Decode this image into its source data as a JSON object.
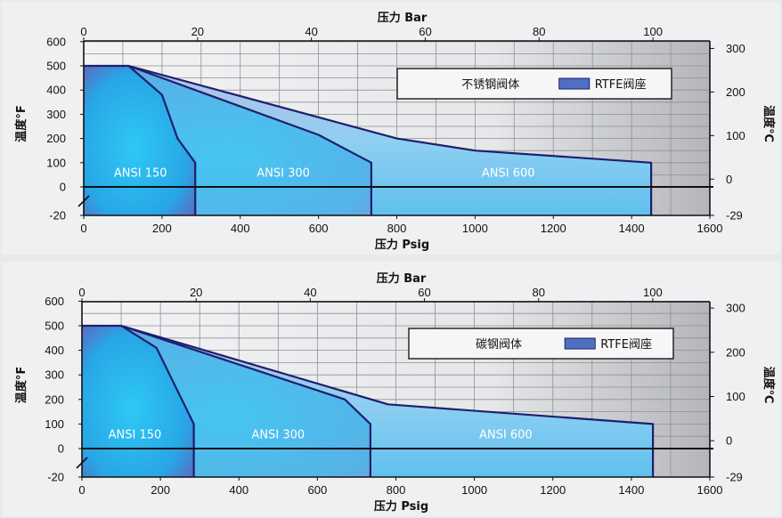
{
  "chart_data": [
    {
      "type": "area",
      "xlabel": "压力 Psig",
      "x2label": "压力 Bar",
      "ylabel": "温度°F",
      "y2label": "温度℃",
      "xlim": [
        0,
        1600
      ],
      "x2lim": [
        0,
        110
      ],
      "ylim": [
        -20,
        600
      ],
      "x_ticks": [
        0,
        200,
        400,
        600,
        800,
        1000,
        1200,
        1400,
        1600
      ],
      "x2_ticks": [
        0,
        20,
        40,
        60,
        80,
        100
      ],
      "y_ticks": [
        -20,
        0,
        100,
        200,
        300,
        400,
        500,
        600
      ],
      "y2_ticks": [
        {
          "label": "-29",
          "value_f": -20
        },
        {
          "label": "0",
          "value_f": 32
        },
        {
          "label": "100",
          "value_f": 212
        },
        {
          "label": "200",
          "value_f": 392
        },
        {
          "label": "300",
          "value_f": 572
        }
      ],
      "grid": true,
      "legend": {
        "position": "top-right",
        "valve_body": "不锈钢阀体",
        "seat": "RTFE阀座",
        "seat_color": "#4f6fc0"
      },
      "series": [
        {
          "name": "ANSI 150",
          "label_at": [
            145,
            60
          ],
          "points": [
            [
              0,
              500
            ],
            [
              115,
              500
            ],
            [
              200,
              380
            ],
            [
              240,
              200
            ],
            [
              285,
              100
            ],
            [
              285,
              -20
            ]
          ]
        },
        {
          "name": "ANSI 300",
          "label_at": [
            510,
            60
          ],
          "points": [
            [
              115,
              500
            ],
            [
              600,
              215
            ],
            [
              735,
              100
            ],
            [
              735,
              -20
            ]
          ]
        },
        {
          "name": "ANSI 600",
          "label_at": [
            1085,
            60
          ],
          "points": [
            [
              115,
              500
            ],
            [
              800,
              200
            ],
            [
              1000,
              150
            ],
            [
              1450,
              100
            ],
            [
              1450,
              -20
            ]
          ]
        }
      ]
    },
    {
      "type": "area",
      "xlabel": "压力 Psig",
      "x2label": "压力 Bar",
      "ylabel": "温度°F",
      "y2label": "温度℃",
      "xlim": [
        0,
        1600
      ],
      "x2lim": [
        0,
        110
      ],
      "ylim": [
        -20,
        600
      ],
      "x_ticks": [
        0,
        200,
        400,
        600,
        800,
        1000,
        1200,
        1400,
        1600
      ],
      "x2_ticks": [
        0,
        20,
        40,
        60,
        80,
        100
      ],
      "y_ticks": [
        -20,
        0,
        100,
        200,
        300,
        400,
        500,
        600
      ],
      "y2_ticks": [
        {
          "label": "-29",
          "value_f": -20
        },
        {
          "label": "0",
          "value_f": 32
        },
        {
          "label": "100",
          "value_f": 212
        },
        {
          "label": "200",
          "value_f": 392
        },
        {
          "label": "300",
          "value_f": 572
        }
      ],
      "grid": true,
      "legend": {
        "position": "top-right",
        "valve_body": "碳钢阀体",
        "seat": "RTFE阀座",
        "seat_color": "#4f6fc0"
      },
      "series": [
        {
          "name": "ANSI 150",
          "label_at": [
            135,
            60
          ],
          "points": [
            [
              0,
              500
            ],
            [
              100,
              500
            ],
            [
              190,
              410
            ],
            [
              285,
              100
            ],
            [
              285,
              -20
            ]
          ]
        },
        {
          "name": "ANSI 300",
          "label_at": [
            500,
            60
          ],
          "points": [
            [
              100,
              500
            ],
            [
              670,
              200
            ],
            [
              735,
              100
            ],
            [
              735,
              -20
            ]
          ]
        },
        {
          "name": "ANSI 600",
          "label_at": [
            1080,
            60
          ],
          "points": [
            [
              100,
              500
            ],
            [
              780,
              180
            ],
            [
              1455,
              100
            ],
            [
              1455,
              -20
            ]
          ]
        }
      ]
    }
  ]
}
